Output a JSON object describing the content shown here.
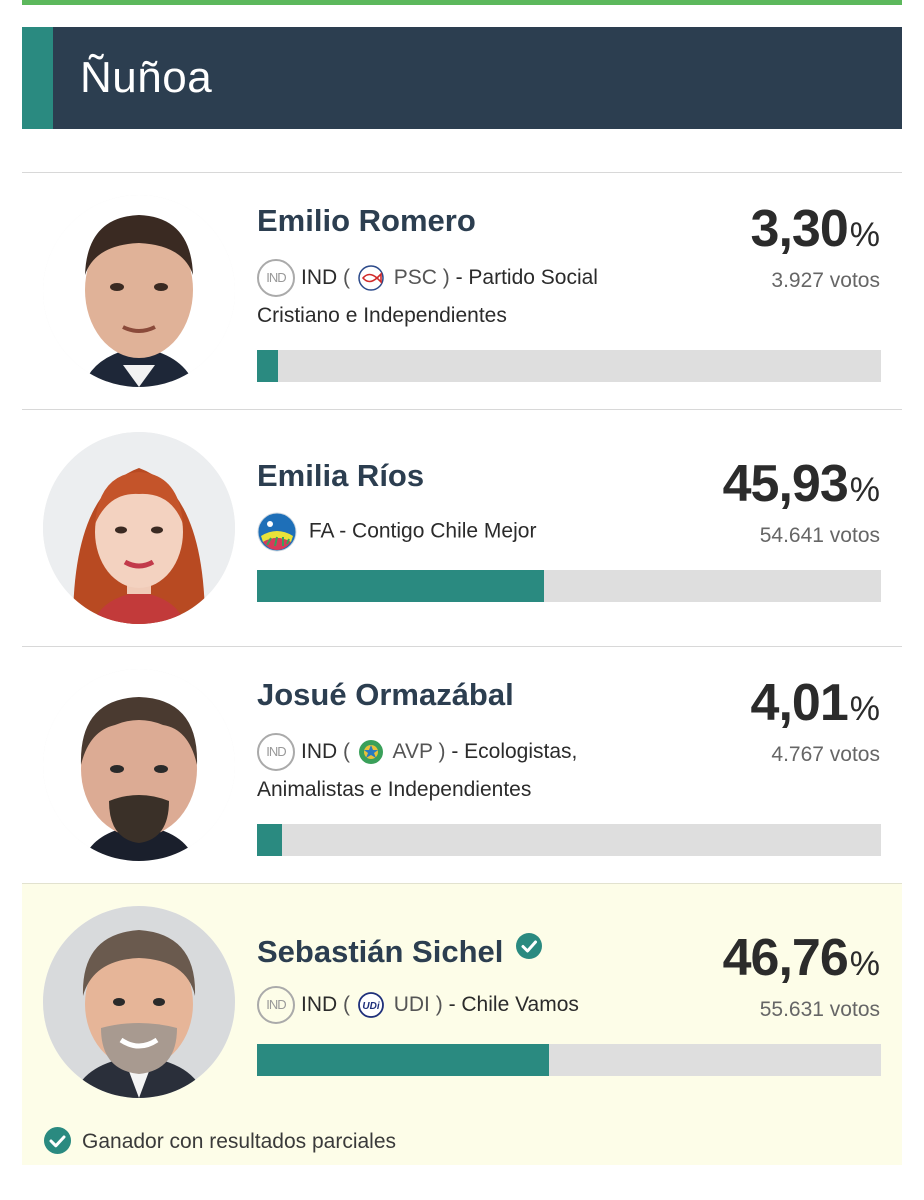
{
  "header": {
    "title": "Ñuñoa"
  },
  "candidates": [
    {
      "name": "Emilio Romero",
      "ind_badge": "IND",
      "ind_label": "IND",
      "party_abbr": "PSC",
      "party_rest": "- Partido Social Cristiano e Independientes",
      "percent": "3,30",
      "votes": "3.927 votos",
      "share": 3.3
    },
    {
      "name": "Emilia Ríos",
      "party_full": "FA - Contigo Chile Mejor",
      "percent": "45,93",
      "votes": "54.641 votos",
      "share": 45.93
    },
    {
      "name": "Josué Ormazábal",
      "ind_badge": "IND",
      "ind_label": "IND",
      "party_abbr": "AVP",
      "party_rest": "- Ecologistas, Animalistas e Independientes",
      "percent": "4,01",
      "votes": "4.767 votos",
      "share": 4.01
    },
    {
      "name": "Sebastián Sichel",
      "ind_badge": "IND",
      "ind_label": "IND",
      "party_abbr": "UDI",
      "party_rest": "- Chile Vamos",
      "percent": "46,76",
      "votes": "55.631 votos",
      "share": 46.76,
      "winner": true
    }
  ],
  "percent_sign": "%",
  "paren_open": "(",
  "paren_close": ")",
  "udi_logo_text": "UDi",
  "footer": {
    "note": "Ganador con resultados parciales"
  },
  "colors": {
    "header_bg": "#2c3e50",
    "accent": "#2a8a80",
    "bar_bg": "#dedede",
    "winner_bg": "#fdfde8",
    "top_strip": "#5cb85c"
  }
}
